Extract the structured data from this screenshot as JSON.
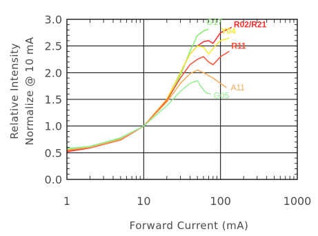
{
  "chart_data": {
    "type": "line",
    "xscale": "log",
    "xlim": [
      1,
      1000
    ],
    "ylim": [
      0,
      3.0
    ],
    "grid": true,
    "xlabel": "Forward Current (mA)",
    "ylabel_lines": [
      "Relative Intensity",
      "Normalize @ 10 mA"
    ],
    "x_ticks": [
      "1",
      "10",
      "100",
      "1000"
    ],
    "y_ticks": [
      "0.0",
      "0.5",
      "1.0",
      "1.5",
      "2.0",
      "2.5",
      "3.0"
    ],
    "series": [
      {
        "name": "G17",
        "color": "#80ee6a",
        "points": [
          [
            1,
            0.57
          ],
          [
            2,
            0.62
          ],
          [
            5,
            0.77
          ],
          [
            10,
            1.0
          ],
          [
            20,
            1.45
          ],
          [
            30,
            1.95
          ],
          [
            40,
            2.4
          ],
          [
            50,
            2.7
          ],
          [
            60,
            2.78
          ],
          [
            70,
            2.82
          ]
        ]
      },
      {
        "name": "R02/R21",
        "color": "#ff2828",
        "bold": true,
        "points": [
          [
            1,
            0.52
          ],
          [
            2,
            0.59
          ],
          [
            5,
            0.74
          ],
          [
            10,
            1.0
          ],
          [
            20,
            1.5
          ],
          [
            30,
            2.0
          ],
          [
            40,
            2.35
          ],
          [
            50,
            2.5
          ],
          [
            60,
            2.58
          ],
          [
            70,
            2.6
          ],
          [
            80,
            2.55
          ],
          [
            100,
            2.75
          ],
          [
            140,
            2.85
          ]
        ]
      },
      {
        "name": "Y04",
        "color": "#f4ea30",
        "bold": true,
        "points": [
          [
            1,
            0.55
          ],
          [
            2,
            0.6
          ],
          [
            5,
            0.75
          ],
          [
            10,
            1.0
          ],
          [
            20,
            1.5
          ],
          [
            30,
            2.0
          ],
          [
            40,
            2.35
          ],
          [
            50,
            2.5
          ],
          [
            60,
            2.48
          ],
          [
            70,
            2.35
          ],
          [
            85,
            2.5
          ],
          [
            100,
            2.6
          ],
          [
            130,
            2.65
          ]
        ]
      },
      {
        "name": "R11",
        "color": "#ff4a2e",
        "bold": true,
        "points": [
          [
            1,
            0.53
          ],
          [
            2,
            0.6
          ],
          [
            5,
            0.74
          ],
          [
            10,
            1.0
          ],
          [
            20,
            1.48
          ],
          [
            30,
            1.9
          ],
          [
            40,
            2.15
          ],
          [
            50,
            2.25
          ],
          [
            60,
            2.3
          ],
          [
            70,
            2.2
          ],
          [
            80,
            2.15
          ],
          [
            100,
            2.3
          ],
          [
            130,
            2.4
          ]
        ]
      },
      {
        "name": "A11",
        "color": "#f5a855",
        "bold": false,
        "points": [
          [
            1,
            0.55
          ],
          [
            2,
            0.6
          ],
          [
            5,
            0.75
          ],
          [
            10,
            1.0
          ],
          [
            20,
            1.45
          ],
          [
            30,
            1.8
          ],
          [
            40,
            1.98
          ],
          [
            50,
            2.05
          ],
          [
            60,
            2.0
          ],
          [
            80,
            1.9
          ],
          [
            100,
            1.8
          ],
          [
            120,
            1.72
          ]
        ]
      },
      {
        "name": "G05",
        "color": "#90ee90",
        "bold": false,
        "points": [
          [
            1,
            0.58
          ],
          [
            2,
            0.62
          ],
          [
            5,
            0.78
          ],
          [
            10,
            1.0
          ],
          [
            20,
            1.38
          ],
          [
            30,
            1.65
          ],
          [
            40,
            1.8
          ],
          [
            50,
            1.85
          ],
          [
            55,
            1.75
          ],
          [
            65,
            1.62
          ],
          [
            75,
            1.6
          ]
        ]
      }
    ]
  }
}
